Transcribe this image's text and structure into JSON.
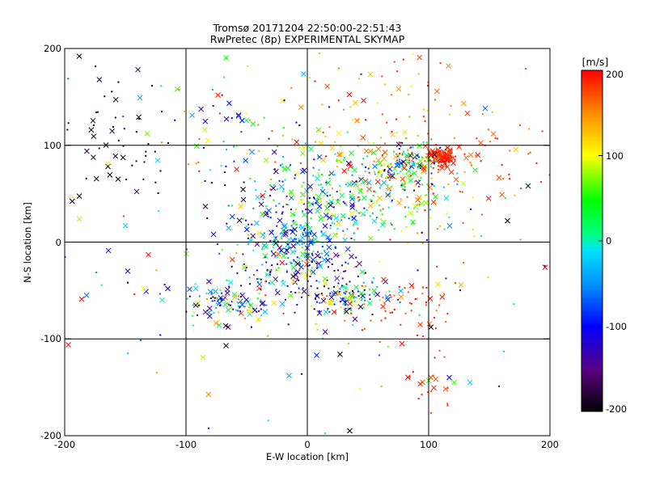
{
  "chart_data": {
    "type": "scatter",
    "title": "Tromsø 20171204 22:50:00-22:51:43",
    "subtitle": "RwPretec (8p) EXPERIMENTAL SKYMAP",
    "xlabel": "E-W location [km]",
    "ylabel": "N-S location [km]",
    "xlim": [
      -200,
      200
    ],
    "ylim": [
      -200,
      200
    ],
    "x_ticks": [
      "-200",
      "-100",
      "0",
      "100",
      "200"
    ],
    "y_ticks": [
      "-200",
      "-100",
      "0",
      "100",
      "200"
    ],
    "grid_lines": [
      -100,
      0,
      100
    ],
    "grid": true,
    "markers": [
      "x",
      "dot"
    ],
    "colorbar": {
      "unit": "[m/s]",
      "range": [
        -200,
        200
      ],
      "ticks": [
        "-200",
        "-100",
        "0",
        "100",
        "200"
      ],
      "colormap": "rainbow: black → purple → blue → cyan → green → yellow → red"
    },
    "clusters": [
      {
        "x": 110,
        "y": 88,
        "sx": 6,
        "sy": 5,
        "n": 130,
        "vmin": 175,
        "vmax": 200
      },
      {
        "x": 85,
        "y": 80,
        "sx": 12,
        "sy": 10,
        "n": 90,
        "vmin": -200,
        "vmax": 200
      },
      {
        "x": 65,
        "y": 55,
        "sx": 30,
        "sy": 25,
        "n": 180,
        "vmin": -40,
        "vmax": 200
      },
      {
        "x": 15,
        "y": 45,
        "sx": 22,
        "sy": 30,
        "n": 200,
        "vmin": -140,
        "vmax": 120
      },
      {
        "x": -30,
        "y": 25,
        "sx": 18,
        "sy": 30,
        "n": 80,
        "vmin": -170,
        "vmax": 60
      },
      {
        "x": -5,
        "y": -5,
        "sx": 14,
        "sy": 15,
        "n": 90,
        "vmin": -140,
        "vmax": 20
      },
      {
        "x": 15,
        "y": -45,
        "sx": 22,
        "sy": 20,
        "n": 80,
        "vmin": -200,
        "vmax": -60
      },
      {
        "x": 35,
        "y": -60,
        "sx": 12,
        "sy": 10,
        "n": 90,
        "vmin": -200,
        "vmax": 200
      },
      {
        "x": -20,
        "y": -25,
        "sx": 18,
        "sy": 18,
        "n": 90,
        "vmin": -200,
        "vmax": 200
      },
      {
        "x": -65,
        "y": -62,
        "sx": 18,
        "sy": 10,
        "n": 110,
        "vmin": -200,
        "vmax": 200
      },
      {
        "x": -160,
        "y": 110,
        "sx": 30,
        "sy": 40,
        "n": 60,
        "vmin": -200,
        "vmax": -175
      },
      {
        "x": 80,
        "y": -60,
        "sx": 20,
        "sy": 20,
        "n": 45,
        "vmin": 150,
        "vmax": 200
      },
      {
        "x": 100,
        "y": -140,
        "sx": 10,
        "sy": 35,
        "n": 30,
        "vmin": 170,
        "vmax": 200
      },
      {
        "x": 60,
        "y": 120,
        "sx": 45,
        "sy": 40,
        "n": 110,
        "vmin": 100,
        "vmax": 200
      },
      {
        "x": -60,
        "y": 100,
        "sx": 30,
        "sy": 25,
        "n": 60,
        "vmin": -200,
        "vmax": 200
      },
      {
        "x": 150,
        "y": 80,
        "sx": 25,
        "sy": 30,
        "n": 45,
        "vmin": 150,
        "vmax": 200
      },
      {
        "x": 0,
        "y": 0,
        "sx": 100,
        "sy": 90,
        "n": 160,
        "vmin": -200,
        "vmax": 200
      }
    ],
    "points": [
      {
        "x": -188,
        "y": 192,
        "v": -200,
        "m": "x"
      },
      {
        "x": -186,
        "y": -59,
        "v": 200,
        "m": "x"
      },
      {
        "x": -182,
        "y": -55,
        "v": -60,
        "m": "x"
      },
      {
        "x": -148,
        "y": -30,
        "v": -110,
        "m": "x"
      },
      {
        "x": -150,
        "y": 17,
        "v": -20,
        "m": "x"
      },
      {
        "x": -138,
        "y": 149,
        "v": -40,
        "m": "x"
      },
      {
        "x": -135,
        "y": -48,
        "v": 100,
        "m": "x"
      },
      {
        "x": -115,
        "y": -48,
        "v": -110,
        "m": "x"
      },
      {
        "x": -95,
        "y": 131,
        "v": -40,
        "m": "x"
      },
      {
        "x": -132,
        "y": 112,
        "v": 70,
        "m": "x"
      },
      {
        "x": -148,
        "y": -115,
        "v": -20,
        "m": "dot"
      },
      {
        "x": -67,
        "y": -107,
        "v": -200,
        "m": "x"
      },
      {
        "x": -15,
        "y": -138,
        "v": -40,
        "m": "x"
      },
      {
        "x": 27,
        "y": -116,
        "v": -200,
        "m": "x"
      },
      {
        "x": 35,
        "y": -195,
        "v": -200,
        "m": "x"
      },
      {
        "x": 100,
        "y": -143,
        "v": 60,
        "m": "x"
      },
      {
        "x": 117,
        "y": -140,
        "v": -110,
        "m": "x"
      },
      {
        "x": 121,
        "y": -145,
        "v": 60,
        "m": "x"
      },
      {
        "x": 134,
        "y": -145,
        "v": -20,
        "m": "x"
      },
      {
        "x": 165,
        "y": 22,
        "v": -200,
        "m": "x"
      },
      {
        "x": 196,
        "y": -26,
        "v": 200,
        "m": "x"
      },
      {
        "x": 182,
        "y": 58,
        "v": -200,
        "m": "x"
      },
      {
        "x": -131,
        "y": -13,
        "v": 200,
        "m": "x"
      },
      {
        "x": -197,
        "y": -106,
        "v": 200,
        "m": "x"
      },
      {
        "x": 162,
        "y": -113,
        "v": -20,
        "m": "dot"
      },
      {
        "x": 78,
        "y": -105,
        "v": 200,
        "m": "x"
      }
    ]
  }
}
